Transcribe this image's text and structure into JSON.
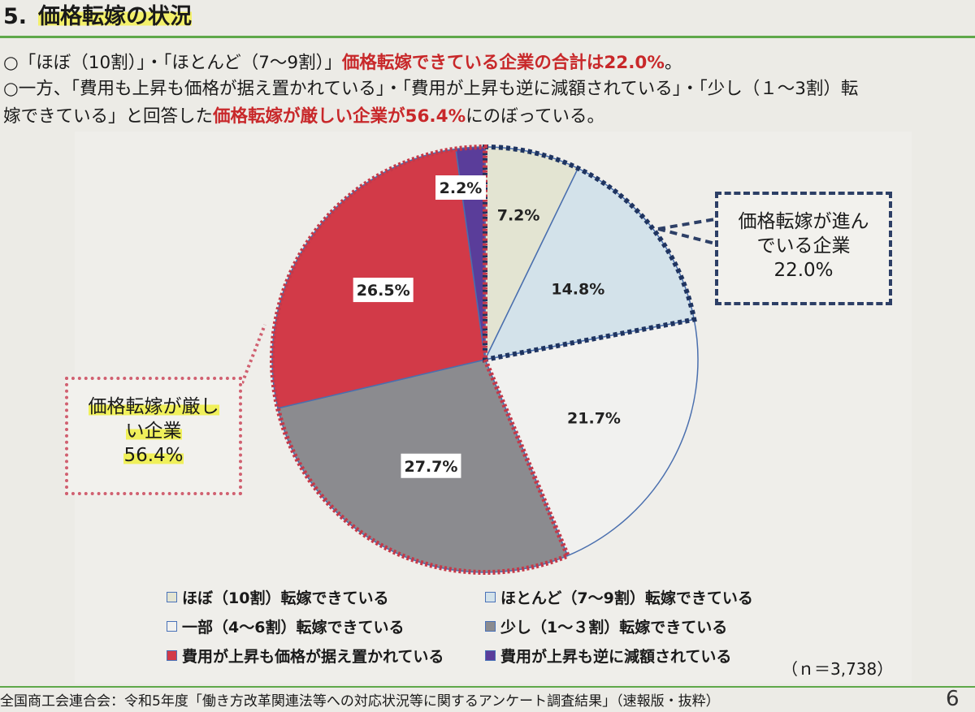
{
  "header": {
    "number": "5.",
    "title": "価格転嫁の状況"
  },
  "lead": {
    "line1_a": "○「ほぼ（10割）」・「ほとんど（7～9割）」",
    "line1_b": "価格転嫁できている企業の合計は22.0%",
    "line1_c": "。",
    "line2": "○一方、「費用も上昇も価格が据え置かれている」・「費用が上昇も逆に減額されている」・「少し（１～3割）転",
    "line3_a": "嫁できている」と回答した",
    "line3_b": "価格転嫁が厳しい企業が56.4%",
    "line3_c": "にのぼっている。"
  },
  "callouts": {
    "positive_line1": "価格転嫁が進ん",
    "positive_line2": "でいる企業",
    "positive_value": "22.0%",
    "negative_line1": "価格転嫁が厳し",
    "negative_line2": "い企業",
    "negative_value": "56.4%"
  },
  "chart_data": {
    "type": "pie",
    "title": "",
    "start": "12 o'clock, clockwise",
    "slices": [
      {
        "label": "ほぼ（10割）転嫁できている",
        "value": 7.2,
        "display": "7.2%",
        "color": "#e3e4d2"
      },
      {
        "label": "ほとんど（7～9割）転嫁できている",
        "value": 14.8,
        "display": "14.8%",
        "color": "#d3e2ea"
      },
      {
        "label": "一部（4～6割）転嫁できている",
        "value": 21.7,
        "display": "21.7%",
        "color": "#f1f1ef"
      },
      {
        "label": "少し（1～３割）転嫁できている",
        "value": 27.7,
        "display": "27.7%",
        "color": "#8b8b8f"
      },
      {
        "label": "費用が上昇も価格が据え置かれている",
        "value": 26.5,
        "display": "26.5%",
        "color": "#d23a48"
      },
      {
        "label": "費用が上昇も逆に減額されている",
        "value": 2.2,
        "display": "2.2%",
        "color": "#5a3d9a"
      }
    ],
    "n_label": "（ｎ＝3,738）"
  },
  "footer": {
    "source": "全国商工会連合会：令和5年度「働き方改革関連法等への対応状況等に関するアンケート調査結果」（速報版・抜粋）",
    "page": "6"
  }
}
